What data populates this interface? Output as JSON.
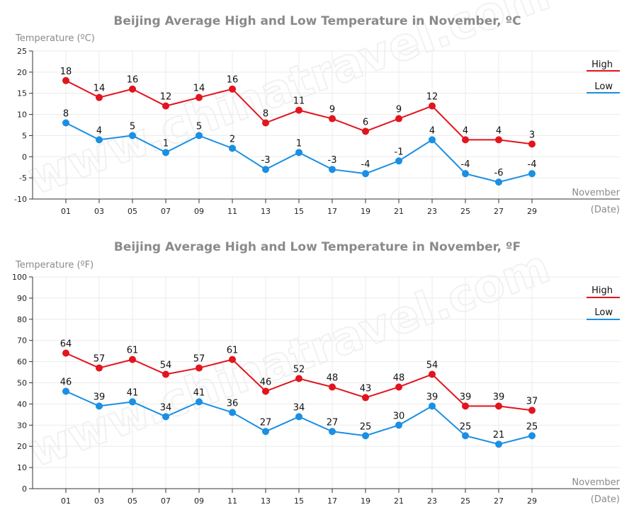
{
  "watermark": "www.chinatravel.com",
  "colors": {
    "high": "#e3141e",
    "low": "#1a8fe3",
    "grid": "#ebebeb",
    "axis": "#333333"
  },
  "chart_data": [
    {
      "type": "line",
      "title": "Beijing Average High and Low Temperature in November, ºC",
      "ylabel": "Temperature (ºC)",
      "xlabel": "November",
      "xlabel2": "(Date)",
      "categories": [
        "01",
        "03",
        "05",
        "07",
        "09",
        "11",
        "13",
        "15",
        "17",
        "19",
        "21",
        "23",
        "25",
        "27",
        "29"
      ],
      "yticks": [
        25,
        20,
        15,
        10,
        5,
        0,
        -5,
        -10
      ],
      "ylim": [
        -10,
        25
      ],
      "grid": true,
      "legend_position": "top-right",
      "series": [
        {
          "name": "High",
          "values": [
            18,
            14,
            16,
            12,
            14,
            16,
            8,
            11,
            9,
            6,
            9,
            12,
            4,
            4,
            3
          ]
        },
        {
          "name": "Low",
          "values": [
            8,
            4,
            5,
            1,
            5,
            2,
            -3,
            1,
            -3,
            -4,
            -1,
            4,
            -4,
            -6,
            -4
          ]
        }
      ]
    },
    {
      "type": "line",
      "title": "Beijing Average High and Low Temperature in November, ºF",
      "ylabel": "Temperature (ºF)",
      "xlabel": "November",
      "xlabel2": "(Date)",
      "categories": [
        "01",
        "03",
        "05",
        "07",
        "09",
        "11",
        "13",
        "15",
        "17",
        "19",
        "21",
        "23",
        "25",
        "27",
        "29"
      ],
      "yticks": [
        100,
        90,
        80,
        70,
        60,
        50,
        40,
        30,
        20,
        10,
        0
      ],
      "ylim": [
        0,
        100
      ],
      "grid": true,
      "legend_position": "top-right",
      "series": [
        {
          "name": "High",
          "values": [
            64,
            57,
            61,
            54,
            57,
            61,
            46,
            52,
            48,
            43,
            48,
            54,
            39,
            39,
            37
          ]
        },
        {
          "name": "Low",
          "values": [
            46,
            39,
            41,
            34,
            41,
            36,
            27,
            34,
            27,
            25,
            30,
            39,
            25,
            21,
            25
          ]
        }
      ]
    }
  ]
}
